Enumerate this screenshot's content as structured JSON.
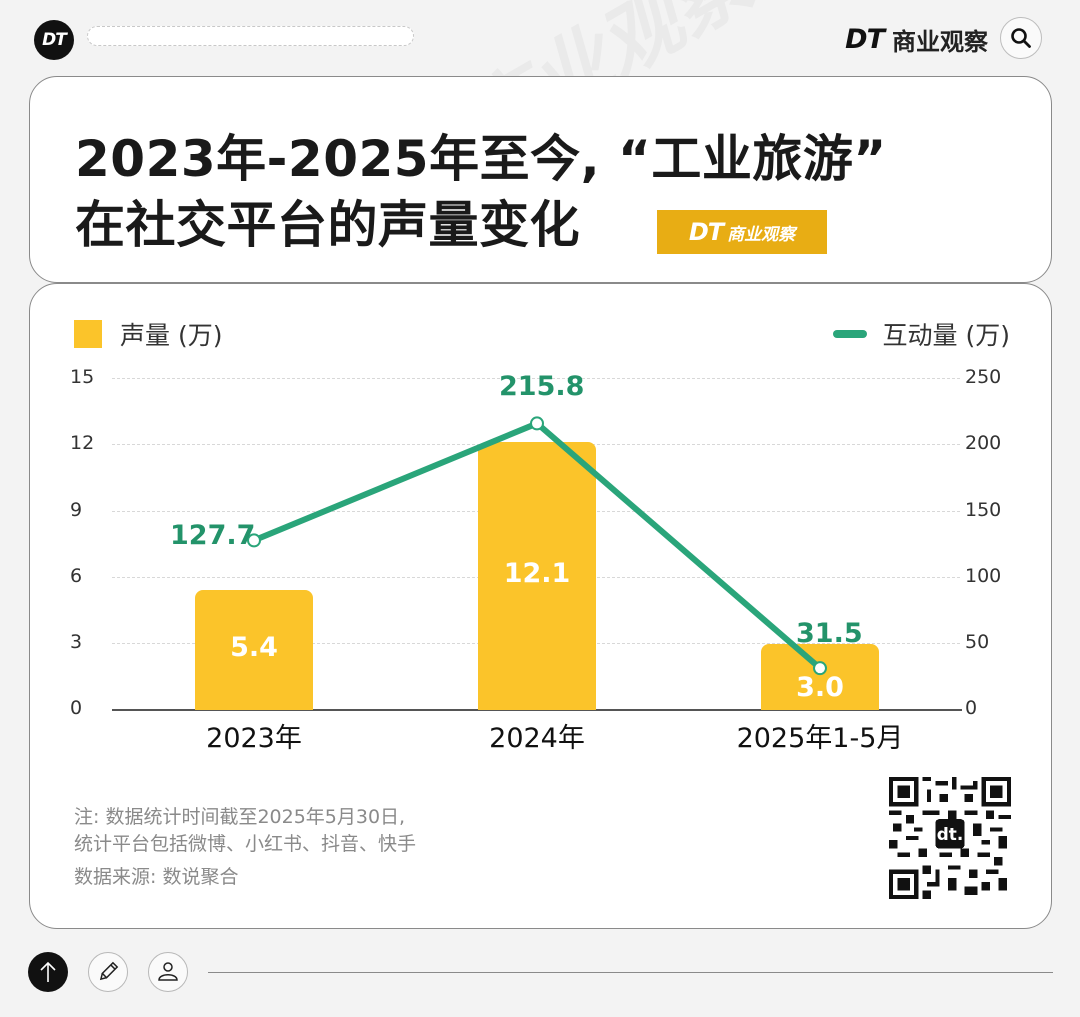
{
  "header": {
    "logo_text": "DT",
    "brand_dt": "DT",
    "brand_name": "商业观察",
    "search_icon": "search-icon"
  },
  "title": {
    "line1": "2023年-2025年至今, “工业旅游”",
    "line2": "在社交平台的声量变化",
    "badge_dt": "DT",
    "badge_name": "商业观察"
  },
  "legend": {
    "bar_label": "声量 (万)",
    "line_label": "互动量 (万)"
  },
  "colors": {
    "bar": "#fbc42a",
    "line": "#2aa57a",
    "line_label": "#23936a",
    "badge": "#e8ad14"
  },
  "chart_data": {
    "type": "bar+line",
    "title": "2023年-2025年至今, “工业旅游”在社交平台的声量变化",
    "categories": [
      "2023年",
      "2024年",
      "2025年1-5月"
    ],
    "series": [
      {
        "name": "声量 (万)",
        "type": "bar",
        "axis": "left",
        "values": [
          5.4,
          12.1,
          3.0
        ]
      },
      {
        "name": "互动量 (万)",
        "type": "line",
        "axis": "right",
        "values": [
          127.7,
          215.8,
          31.5
        ]
      }
    ],
    "y_left": {
      "ticks": [
        "15",
        "12",
        "9",
        "6",
        "3",
        "0"
      ],
      "range": [
        0,
        15
      ]
    },
    "y_right": {
      "ticks": [
        "250",
        "200",
        "150",
        "100",
        "50",
        "0"
      ],
      "range": [
        0,
        250
      ]
    },
    "grid": true,
    "legend_position": "top"
  },
  "x_labels": [
    {
      "year": "2023年",
      "suffix": ""
    },
    {
      "year": "2024年",
      "suffix": ""
    },
    {
      "year": "2025年",
      "suffix": "1-5月"
    }
  ],
  "bar_labels": [
    "5.4",
    "12.1",
    "3.0"
  ],
  "line_labels": [
    "127.7",
    "215.8",
    "31.5"
  ],
  "notes": {
    "line1": "注: 数据统计时间截至2025年5月30日,",
    "line2": "统计平台包括微博、小红书、抖音、快手",
    "source": "数据来源: 数说聚合"
  },
  "qr": {
    "center_text": "dt."
  },
  "footer": {
    "up_icon": "arrow-up-icon",
    "pen_icon": "pencil-icon",
    "user_icon": "user-icon"
  }
}
